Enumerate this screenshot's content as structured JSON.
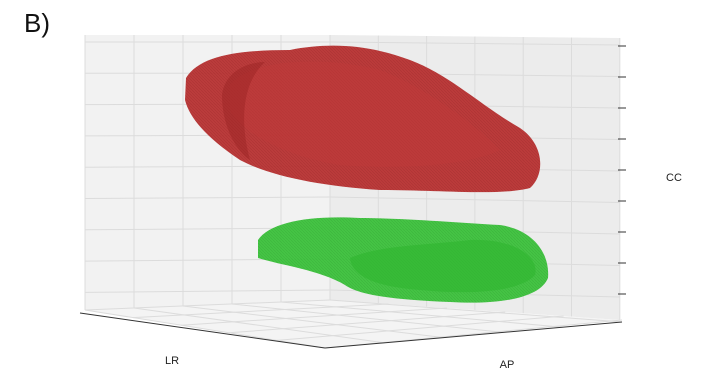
{
  "panel_label": "B)",
  "axes": {
    "x": "LR",
    "y": "AP",
    "z": "CC"
  }
}
